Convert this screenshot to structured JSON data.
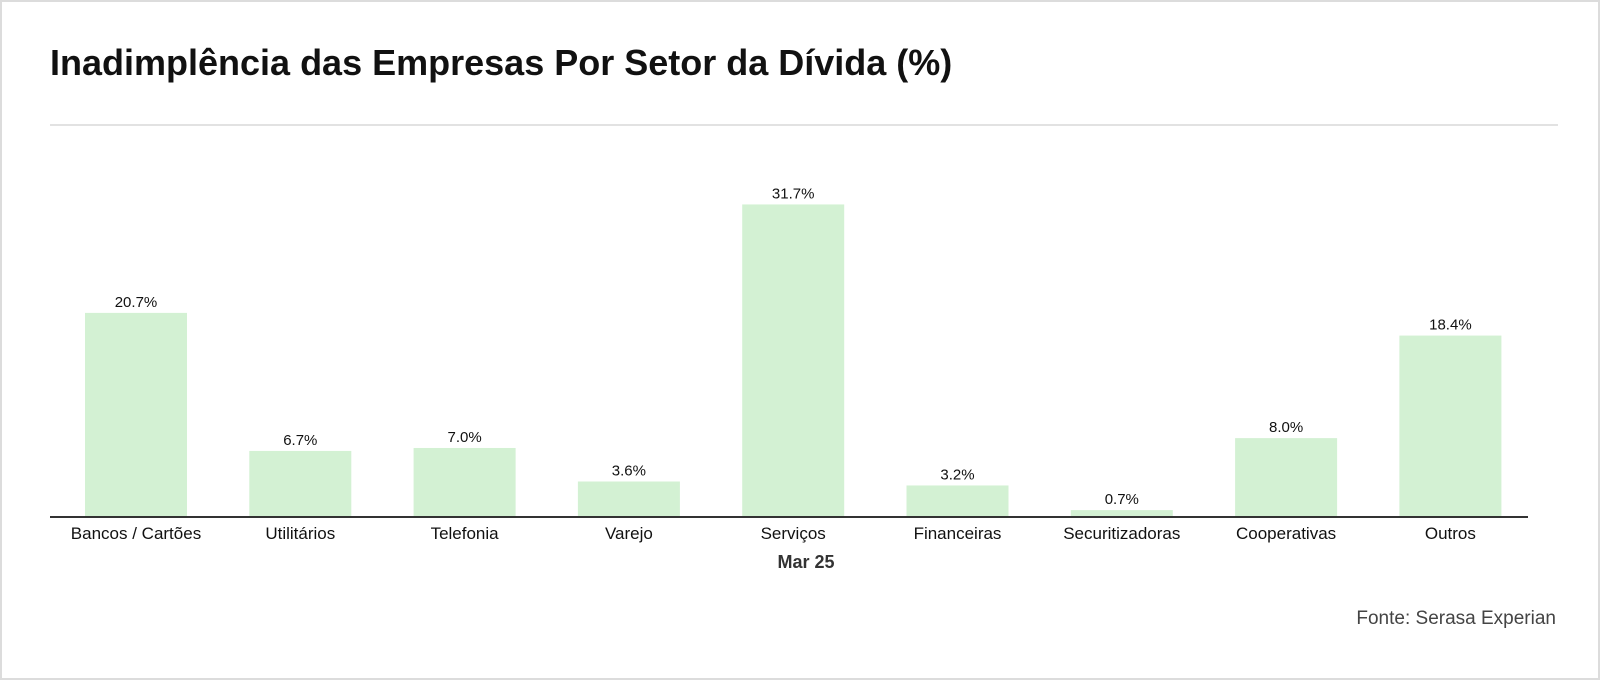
{
  "title": "Inadimplência das Empresas Por Setor da Dívida (%)",
  "source": "Fonte: Serasa Experian",
  "colors": {
    "bar": "#d3f1d3",
    "axis": "#333333",
    "text": "#111111"
  },
  "chart_data": {
    "type": "bar",
    "title": "Inadimplência das Empresas Por Setor da Dívida (%)",
    "xlabel": "Mar 25",
    "ylabel": "",
    "categories": [
      "Bancos / Cartões",
      "Utilitários",
      "Telefonia",
      "Varejo",
      "Serviços",
      "Financeiras",
      "Securitizadoras",
      "Cooperativas",
      "Outros"
    ],
    "values": [
      20.7,
      6.7,
      7.0,
      3.6,
      31.7,
      3.2,
      0.7,
      8.0,
      18.4
    ],
    "value_labels": [
      "20.7%",
      "6.7%",
      "7.0%",
      "3.6%",
      "31.7%",
      "3.2%",
      "0.7%",
      "8.0%",
      "18.4%"
    ],
    "ylim": [
      0,
      33
    ],
    "grid": false,
    "legend": "none"
  }
}
